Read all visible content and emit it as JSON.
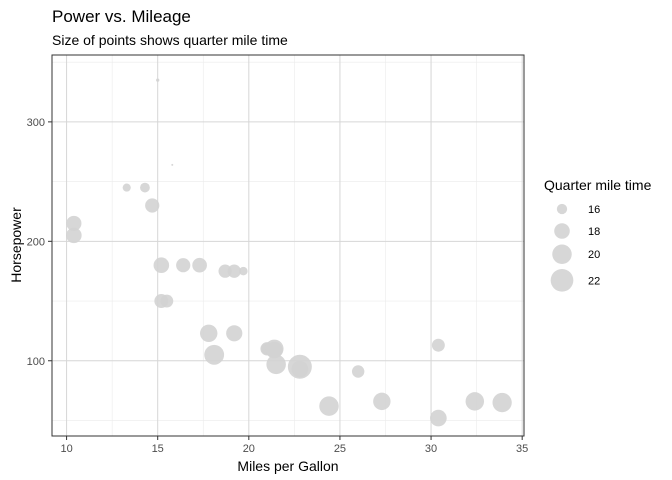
{
  "chart_data": {
    "type": "scatter",
    "title": "Power vs. Mileage",
    "subtitle": "Size of points shows quarter mile time",
    "xlabel": "Miles per Gallon",
    "ylabel": "Horsepower",
    "xlim": [
      9.2,
      35.1
    ],
    "ylim": [
      37,
      356
    ],
    "x_ticks": [
      10,
      15,
      20,
      25,
      30,
      35
    ],
    "y_ticks": [
      100,
      200,
      300
    ],
    "grid": true,
    "point_color": "#d3d3d3",
    "size_legend": {
      "title": "Quarter mile time",
      "position": "right",
      "values": [
        16,
        18,
        20,
        22
      ],
      "labels": [
        "16",
        "18",
        "20",
        "22"
      ]
    },
    "points": [
      {
        "mpg": 21.0,
        "hp": 110,
        "qsec": 16.46
      },
      {
        "mpg": 21.0,
        "hp": 110,
        "qsec": 17.02
      },
      {
        "mpg": 22.8,
        "hp": 93,
        "qsec": 18.61
      },
      {
        "mpg": 21.4,
        "hp": 110,
        "qsec": 19.44
      },
      {
        "mpg": 18.7,
        "hp": 175,
        "qsec": 17.02
      },
      {
        "mpg": 18.1,
        "hp": 105,
        "qsec": 20.22
      },
      {
        "mpg": 14.3,
        "hp": 245,
        "qsec": 15.84
      },
      {
        "mpg": 24.4,
        "hp": 62,
        "qsec": 20.0
      },
      {
        "mpg": 22.8,
        "hp": 95,
        "qsec": 22.9
      },
      {
        "mpg": 19.2,
        "hp": 123,
        "qsec": 18.3
      },
      {
        "mpg": 17.8,
        "hp": 123,
        "qsec": 18.9
      },
      {
        "mpg": 16.4,
        "hp": 180,
        "qsec": 17.4
      },
      {
        "mpg": 17.3,
        "hp": 180,
        "qsec": 17.6
      },
      {
        "mpg": 15.2,
        "hp": 180,
        "qsec": 18.0
      },
      {
        "mpg": 10.4,
        "hp": 205,
        "qsec": 17.98
      },
      {
        "mpg": 10.4,
        "hp": 215,
        "qsec": 17.82
      },
      {
        "mpg": 14.7,
        "hp": 230,
        "qsec": 17.42
      },
      {
        "mpg": 32.4,
        "hp": 66,
        "qsec": 19.47
      },
      {
        "mpg": 30.4,
        "hp": 52,
        "qsec": 18.52
      },
      {
        "mpg": 33.9,
        "hp": 65,
        "qsec": 19.9
      },
      {
        "mpg": 21.5,
        "hp": 97,
        "qsec": 20.01
      },
      {
        "mpg": 15.5,
        "hp": 150,
        "qsec": 16.87
      },
      {
        "mpg": 15.2,
        "hp": 150,
        "qsec": 17.3
      },
      {
        "mpg": 13.3,
        "hp": 245,
        "qsec": 15.41
      },
      {
        "mpg": 19.2,
        "hp": 175,
        "qsec": 17.05
      },
      {
        "mpg": 27.3,
        "hp": 66,
        "qsec": 18.9
      },
      {
        "mpg": 26.0,
        "hp": 91,
        "qsec": 16.7
      },
      {
        "mpg": 30.4,
        "hp": 113,
        "qsec": 16.9
      },
      {
        "mpg": 15.8,
        "hp": 264,
        "qsec": 14.5
      },
      {
        "mpg": 19.7,
        "hp": 175,
        "qsec": 15.5
      },
      {
        "mpg": 15.0,
        "hp": 335,
        "qsec": 14.6
      },
      {
        "mpg": 21.4,
        "hp": 109,
        "qsec": 18.6
      }
    ]
  }
}
